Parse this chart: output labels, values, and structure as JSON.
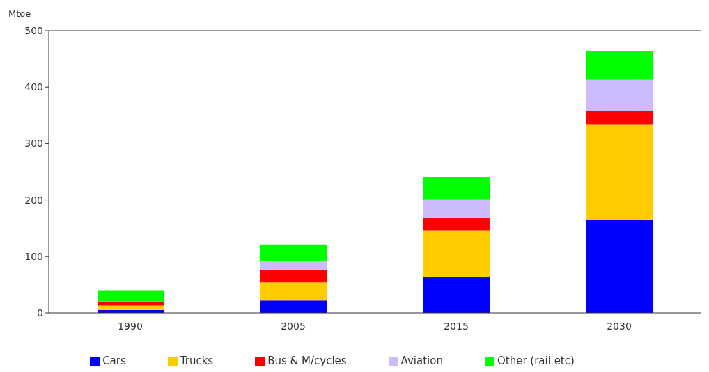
{
  "chart_data": {
    "type": "bar",
    "ylabel": "Mtoe",
    "categories": [
      "1990",
      "2005",
      "2015",
      "2030"
    ],
    "stacked": true,
    "ylim": [
      0,
      500
    ],
    "yticks": [
      0,
      100,
      200,
      300,
      400,
      500
    ],
    "grid": false,
    "legend": "bottom",
    "series": [
      {
        "name": "Cars",
        "color": "#0000ff",
        "values": [
          5,
          22,
          64,
          164
        ]
      },
      {
        "name": "Trucks",
        "color": "#ffcc00",
        "values": [
          8,
          32,
          82,
          169
        ]
      },
      {
        "name": "Bus & M/cycles",
        "color": "#ff0000",
        "values": [
          7,
          22,
          23,
          24
        ]
      },
      {
        "name": "Aviation",
        "color": "#ccbbff",
        "values": [
          0,
          15,
          32,
          56
        ]
      },
      {
        "name": "Other (rail etc)",
        "color": "#00ff00",
        "values": [
          20,
          30,
          40,
          50
        ]
      }
    ]
  }
}
